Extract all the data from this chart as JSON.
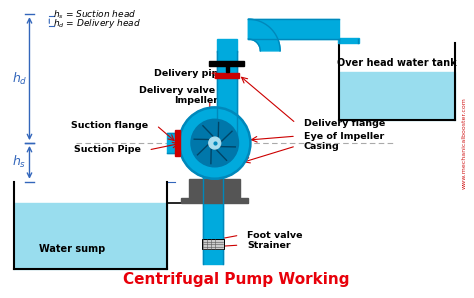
{
  "title": "Centrifugal Pump Working",
  "title_color": "#e8000a",
  "title_fontsize": 11,
  "bg_color": "#ffffff",
  "blue": "#00aadd",
  "dark_blue": "#0088bb",
  "light_blue": "#99ddee",
  "gray": "#888888",
  "dark_gray": "#555555",
  "red": "#cc0000",
  "black": "#000000",
  "watermark": "www.mechanicalbooster.com",
  "labels": {
    "delivery_pipe": "Delivery pipe",
    "delivery_valve": "Delivery valve",
    "impeller": "Impeller",
    "suction_flange": "Suction flange",
    "delivery_flange": "Delivery flange",
    "eye_of_impeller": "Eye of Impeller",
    "casing": "Casing",
    "suction_pipe": "Suction Pipe",
    "foot_valve": "Foot valve",
    "strainer": "Strainer",
    "water_sump": "Water sump",
    "overhead_tank": "Over head water tank",
    "legend_hs": "h_s = Suction head",
    "legend_hd": "h_d = Delivery head"
  }
}
